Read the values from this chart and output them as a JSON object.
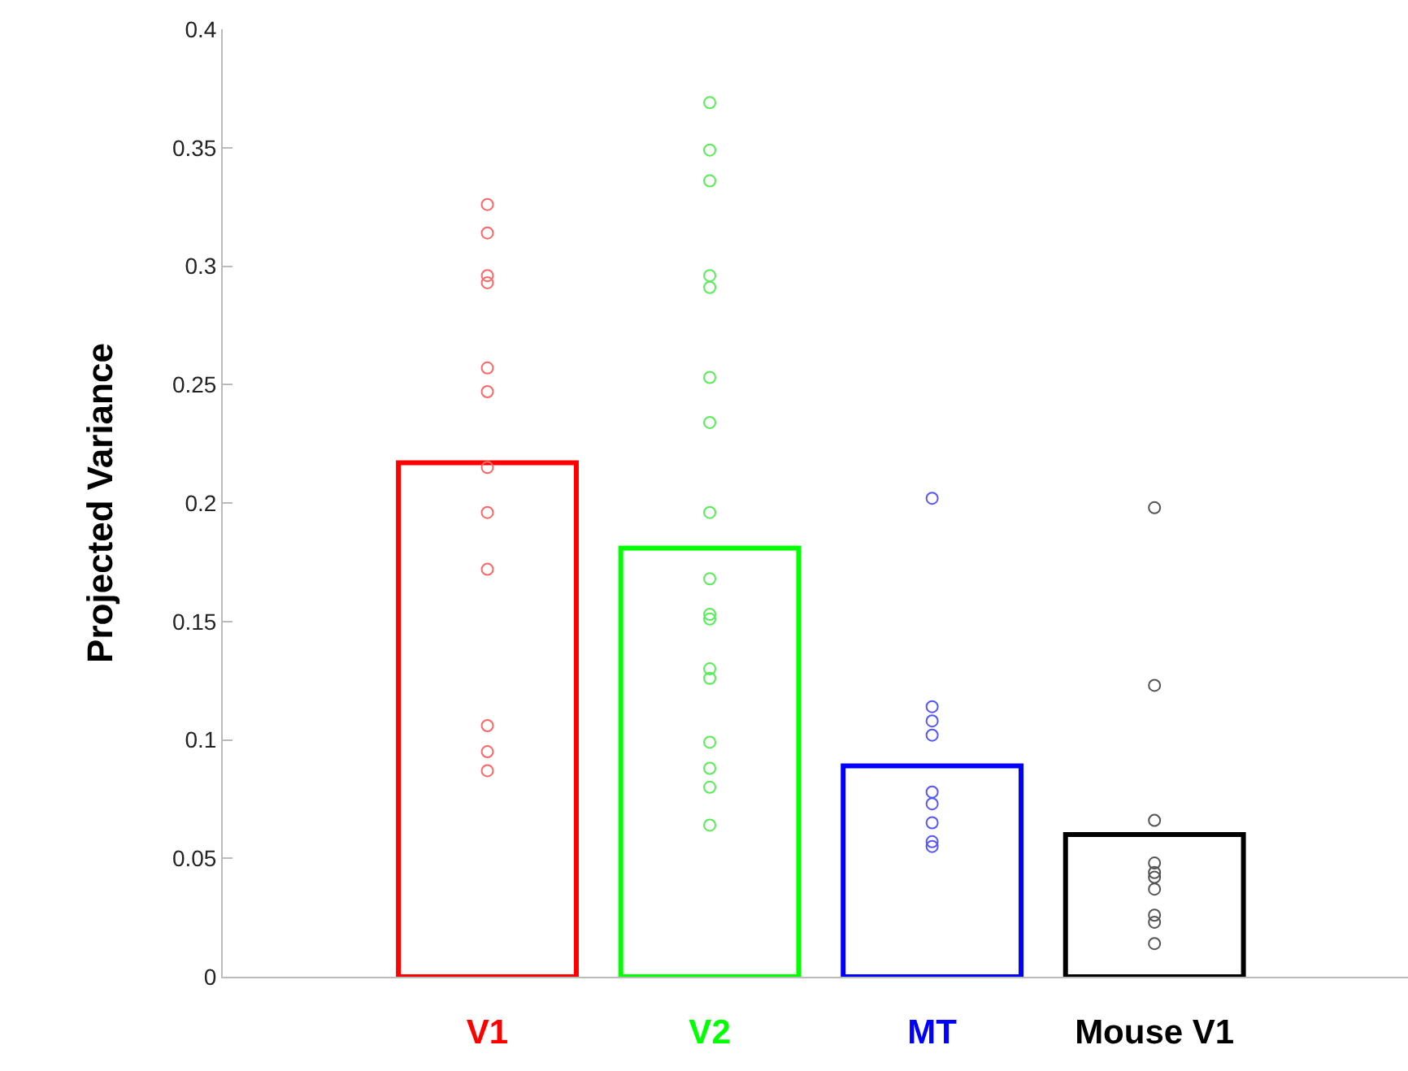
{
  "chart_data": {
    "type": "bar",
    "ylabel": "Projected Variance",
    "categories": [
      "V1",
      "V2",
      "MT",
      "Mouse V1"
    ],
    "ylim": [
      0,
      0.4
    ],
    "yticks": [
      0,
      0.05,
      0.1,
      0.15,
      0.2,
      0.25,
      0.3,
      0.35,
      0.4
    ],
    "grid": false,
    "marker": "circle",
    "series": [
      {
        "colors": [
          "#ff0000",
          "#00ff00",
          "#0000ff",
          "#000000"
        ],
        "values": [
          0.217,
          0.181,
          0.089,
          0.06
        ]
      },
      {
        "type": "scatter",
        "color": "#ff6666",
        "x": [
          "V1",
          "V1",
          "V1",
          "V1",
          "V1",
          "V1",
          "V1",
          "V1",
          "V1",
          "V1",
          "V1",
          "V1"
        ],
        "values": [
          0.326,
          0.314,
          0.296,
          0.293,
          0.257,
          0.247,
          0.215,
          0.196,
          0.172,
          0.106,
          0.095,
          0.087
        ]
      },
      {
        "type": "scatter",
        "color": "#55ee55",
        "x": [
          "V2",
          "V2",
          "V2",
          "V2",
          "V2",
          "V2",
          "V2",
          "V2",
          "V2",
          "V2",
          "V2",
          "V2",
          "V2",
          "V2",
          "V2",
          "V2",
          "V2"
        ],
        "values": [
          0.369,
          0.349,
          0.336,
          0.296,
          0.291,
          0.253,
          0.234,
          0.196,
          0.168,
          0.153,
          0.151,
          0.13,
          0.126,
          0.099,
          0.088,
          0.08,
          0.064
        ]
      },
      {
        "type": "scatter",
        "color": "#5555ff",
        "x": [
          "MT",
          "MT",
          "MT",
          "MT",
          "MT",
          "MT",
          "MT",
          "MT",
          "MT"
        ],
        "values": [
          0.202,
          0.114,
          0.108,
          0.102,
          0.078,
          0.073,
          0.065,
          0.057,
          0.055
        ]
      },
      {
        "type": "scatter",
        "color": "#555555",
        "x": [
          "Mouse V1",
          "Mouse V1",
          "Mouse V1",
          "Mouse V1",
          "Mouse V1",
          "Mouse V1",
          "Mouse V1",
          "Mouse V1",
          "Mouse V1",
          "Mouse V1"
        ],
        "values": [
          0.198,
          0.123,
          0.066,
          0.048,
          0.044,
          0.042,
          0.037,
          0.026,
          0.023,
          0.014
        ]
      }
    ]
  }
}
